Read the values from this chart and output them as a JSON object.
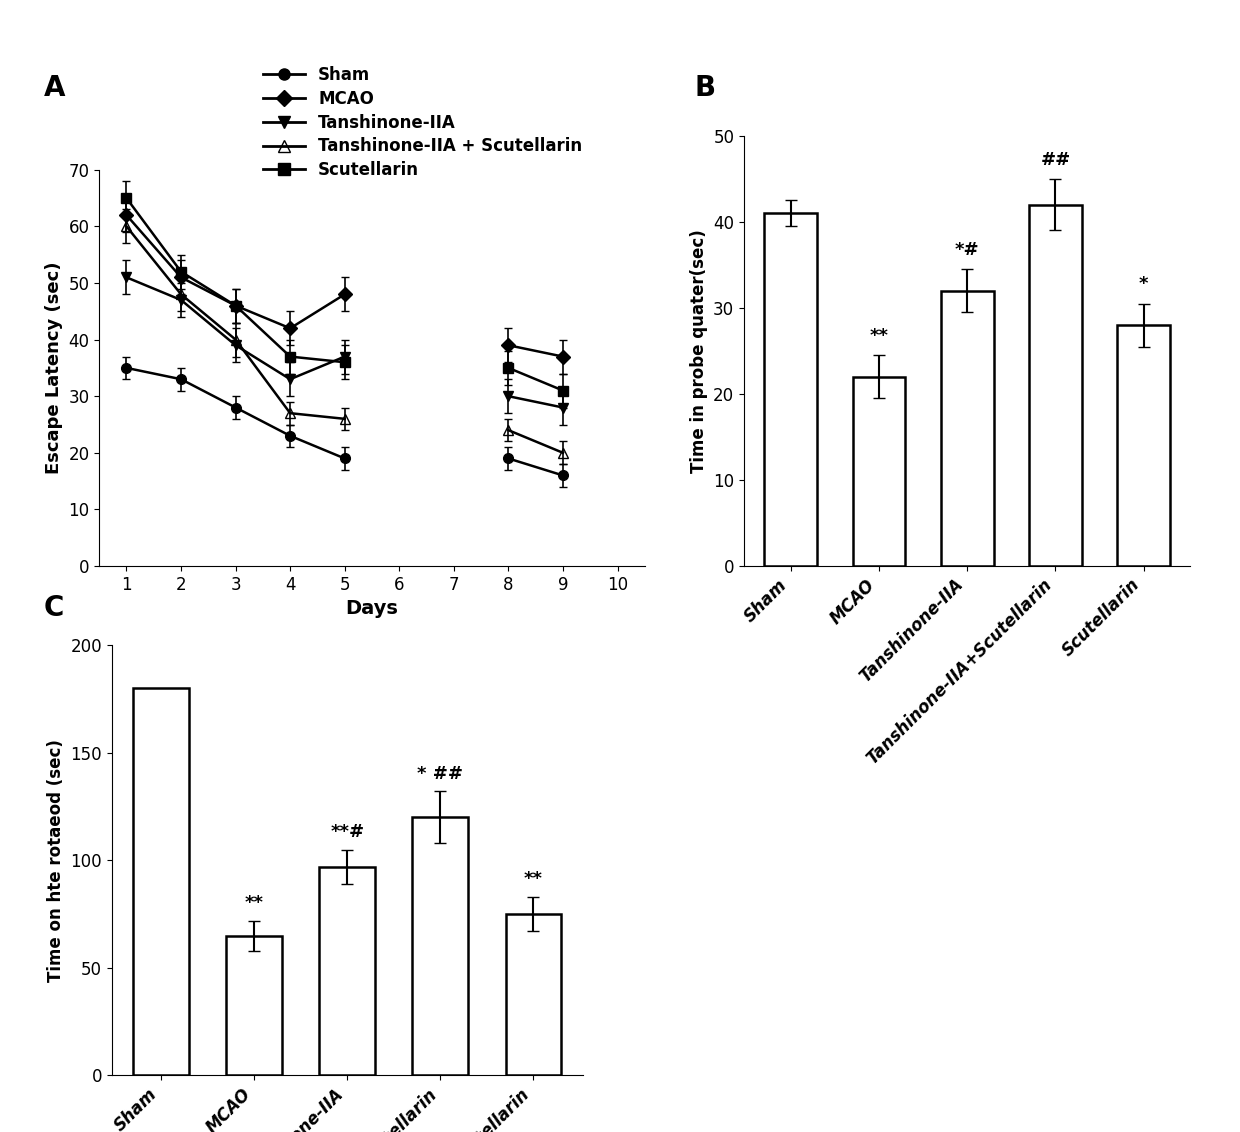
{
  "panel_A": {
    "title": "A",
    "xlabel": "Days",
    "ylabel": "Escape Latency (sec)",
    "ylim": [
      0,
      70
    ],
    "yticks": [
      0,
      10,
      20,
      30,
      40,
      50,
      60,
      70
    ],
    "xticks": [
      1,
      2,
      3,
      4,
      5,
      6,
      7,
      8,
      9,
      10
    ],
    "days_phase1": [
      1,
      2,
      3,
      4,
      5
    ],
    "days_phase2": [
      8,
      9
    ],
    "groups": {
      "Sham": {
        "phase1_mean": [
          35,
          33,
          28,
          23,
          19
        ],
        "phase1_err": [
          2,
          2,
          2,
          2,
          2
        ],
        "phase2_mean": [
          19,
          16
        ],
        "phase2_err": [
          2,
          2
        ],
        "marker": "o",
        "fill": true
      },
      "MCAO": {
        "phase1_mean": [
          62,
          51,
          46,
          42,
          48
        ],
        "phase1_err": [
          3,
          3,
          3,
          3,
          3
        ],
        "phase2_mean": [
          39,
          37
        ],
        "phase2_err": [
          3,
          3
        ],
        "marker": "D",
        "fill": true
      },
      "Tanshinone-IIA": {
        "phase1_mean": [
          51,
          47,
          39,
          33,
          37
        ],
        "phase1_err": [
          3,
          3,
          3,
          3,
          3
        ],
        "phase2_mean": [
          30,
          28
        ],
        "phase2_err": [
          3,
          3
        ],
        "marker": "v",
        "fill": true
      },
      "Tanshinone-IIA + Scutellarin": {
        "phase1_mean": [
          60,
          48,
          40,
          27,
          26
        ],
        "phase1_err": [
          3,
          3,
          3,
          2,
          2
        ],
        "phase2_mean": [
          24,
          20
        ],
        "phase2_err": [
          2,
          2
        ],
        "marker": "^",
        "fill": false
      },
      "Scutellarin": {
        "phase1_mean": [
          65,
          52,
          46,
          37,
          36
        ],
        "phase1_err": [
          3,
          3,
          3,
          3,
          3
        ],
        "phase2_mean": [
          35,
          31
        ],
        "phase2_err": [
          3,
          3
        ],
        "marker": "s",
        "fill": true
      }
    },
    "groups_order": [
      "Sham",
      "MCAO",
      "Tanshinone-IIA",
      "Tanshinone-IIA + Scutellarin",
      "Scutellarin"
    ]
  },
  "panel_B": {
    "title": "B",
    "ylabel": "Time in probe quater(sec)",
    "ylim": [
      0,
      50
    ],
    "yticks": [
      0,
      10,
      20,
      30,
      40,
      50
    ],
    "categories": [
      "Sham",
      "MCAO",
      "Tanshinone-IIA",
      "Tanshinone-IIA+Scutellarin",
      "Scutellarin"
    ],
    "tick_labels": [
      "Sham",
      "MCAO",
      "Tanshinone-IIA",
      "Tanshinone-IIA+Scutellarin",
      "Scutellarin"
    ],
    "values": [
      41,
      22,
      32,
      42,
      28
    ],
    "errors": [
      1.5,
      2.5,
      2.5,
      3.0,
      2.5
    ],
    "annotations": [
      "",
      "**",
      "*#",
      "##",
      "*"
    ],
    "bar_color": "#ffffff",
    "edge_color": "#000000"
  },
  "panel_C": {
    "title": "C",
    "ylabel": "Time on hte rotaeod (sec)",
    "ylim": [
      0,
      200
    ],
    "yticks": [
      0,
      50,
      100,
      150,
      200
    ],
    "categories": [
      "Sham",
      "MCAO",
      "Tanshinone-IIA",
      "Tanshinone-IIA+Scutellarin",
      "Scutellarin"
    ],
    "tick_labels": [
      "Sham",
      "MCAO",
      "Tanshinone-IIA",
      "Tanshinone-IIA+Scutellarin",
      "Scutellarin"
    ],
    "values": [
      180,
      65,
      97,
      120,
      75
    ],
    "errors": [
      0,
      7,
      8,
      12,
      8
    ],
    "annotations": [
      "",
      "**",
      "**#",
      "* ##",
      "**"
    ],
    "bar_color": "#ffffff",
    "edge_color": "#000000"
  }
}
